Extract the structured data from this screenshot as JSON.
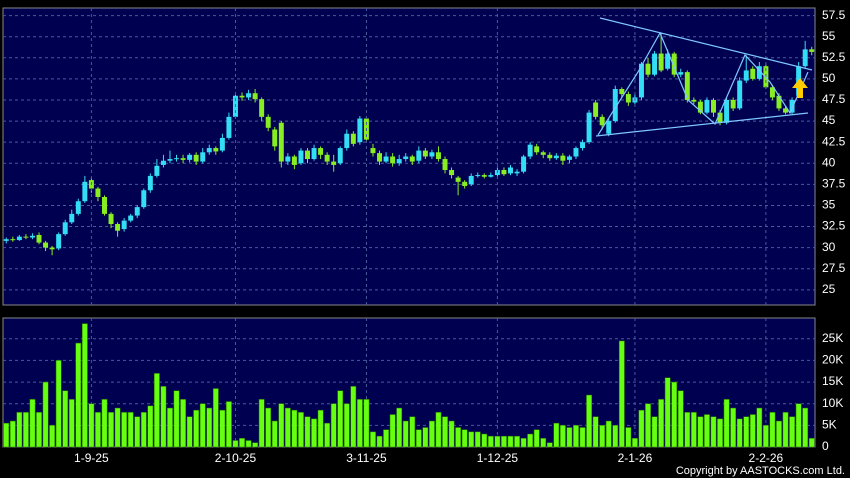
{
  "chart_data": [
    {
      "type": "candlestick",
      "up_color": "#33ddf5",
      "down_color": "#88ee22",
      "ylim": [
        23.2,
        58.4
      ],
      "yticks": [
        25,
        27.5,
        30,
        32.5,
        35,
        37.5,
        40,
        42.5,
        45,
        47.5,
        50,
        52.5,
        55,
        57.5
      ],
      "grid": true,
      "open": [
        30.8,
        31.0,
        30.9,
        31.3,
        31.2,
        31.5,
        30.6,
        30.0,
        29.9,
        31.6,
        33.0,
        34.0,
        35.5,
        38.0,
        37.0,
        36.0,
        34.0,
        32.8,
        32.2,
        33.2,
        33.8,
        34.8,
        36.8,
        38.5,
        39.8,
        40.3,
        40.5,
        40.6,
        40.4,
        41.0,
        40.2,
        41.3,
        41.8,
        41.5,
        43.0,
        45.5,
        48.0,
        47.8,
        48.3,
        47.6,
        45.5,
        44.0,
        44.8,
        40.2,
        40.8,
        40.0,
        41.5,
        40.5,
        41.8,
        41.0,
        40.2,
        40.0,
        41.8,
        43.5,
        42.5,
        45.3,
        41.8,
        41.2,
        40.2,
        40.8,
        40.0,
        40.5,
        40.8,
        40.3,
        41.5,
        40.8,
        41.3,
        40.5,
        39.2,
        38.3,
        37.8,
        37.5,
        38.5,
        38.6,
        38.4,
        38.6,
        39.2,
        38.8,
        38.8,
        39.0,
        40.8,
        42.0,
        41.3,
        41.0,
        40.6,
        40.9,
        40.4,
        40.8,
        41.8,
        42.5,
        47.2,
        45.5,
        43.5,
        45.0,
        48.8,
        48.2,
        47.2,
        47.8,
        51.8,
        50.5,
        53.0,
        51.2,
        53.0,
        50.5,
        50.8,
        47.5,
        47.3,
        46.0,
        47.5,
        46.0,
        44.8,
        47.5,
        46.5,
        49.8,
        51.2,
        50.0,
        51.5,
        49.0,
        48.0,
        46.5,
        46.0,
        48.0,
        51.5,
        53.5
      ],
      "high": [
        31.2,
        31.3,
        31.5,
        31.6,
        31.7,
        31.8,
        30.8,
        30.2,
        31.8,
        33.3,
        34.5,
        35.8,
        38.5,
        38.3,
        37.2,
        36.2,
        34.2,
        33.0,
        33.5,
        34.0,
        35.0,
        37.0,
        38.8,
        40.5,
        41.0,
        41.5,
        41.0,
        41.0,
        41.2,
        41.3,
        41.8,
        42.2,
        42.0,
        43.5,
        46.0,
        48.3,
        48.4,
        48.7,
        48.8,
        47.8,
        45.8,
        44.3,
        45.0,
        41.2,
        41.0,
        41.8,
        41.8,
        42.2,
        42.0,
        41.3,
        41.0,
        42.0,
        44.0,
        43.8,
        45.6,
        45.5,
        42.3,
        41.5,
        41.3,
        41.2,
        41.0,
        41.2,
        41.0,
        42.0,
        41.8,
        41.6,
        42.0,
        40.8,
        39.5,
        38.5,
        38.0,
        38.8,
        38.9,
        38.8,
        38.9,
        39.5,
        39.5,
        39.8,
        39.3,
        41.0,
        42.5,
        42.3,
        41.5,
        41.3,
        41.2,
        41.2,
        41.0,
        42.0,
        42.8,
        46.3,
        47.5,
        45.8,
        45.3,
        49.2,
        49.0,
        48.5,
        48.2,
        52.0,
        52.5,
        53.3,
        55.5,
        53.5,
        53.2,
        51.2,
        51.0,
        47.8,
        47.5,
        47.8,
        47.7,
        46.3,
        47.8,
        47.8,
        50.2,
        52.8,
        51.5,
        52.0,
        51.8,
        49.3,
        48.3,
        46.8,
        47.8,
        52.0,
        54.5,
        53.8
      ],
      "low": [
        30.5,
        30.7,
        30.8,
        31.0,
        31.0,
        30.4,
        29.6,
        29.1,
        29.7,
        31.4,
        32.8,
        33.8,
        35.3,
        36.5,
        35.5,
        33.8,
        32.3,
        31.3,
        31.9,
        33.0,
        33.5,
        34.6,
        36.5,
        38.3,
        39.5,
        40.0,
        40.2,
        40.0,
        40.1,
        39.8,
        40.0,
        41.0,
        41.0,
        41.3,
        42.8,
        45.3,
        47.4,
        47.5,
        47.2,
        45.0,
        43.8,
        41.5,
        39.5,
        39.8,
        39.3,
        39.8,
        40.0,
        40.3,
        40.5,
        39.8,
        39.0,
        39.8,
        41.5,
        42.0,
        42.2,
        42.5,
        40.8,
        39.8,
        40.0,
        39.6,
        39.7,
        40.2,
        39.8,
        40.0,
        40.5,
        40.5,
        40.2,
        38.8,
        38.2,
        36.2,
        37.0,
        37.3,
        38.3,
        38.2,
        38.3,
        38.4,
        38.5,
        38.6,
        38.5,
        38.8,
        40.5,
        41.0,
        40.6,
        40.3,
        40.4,
        39.8,
        40.0,
        40.5,
        41.5,
        42.3,
        45.2,
        44.0,
        43.2,
        44.8,
        47.8,
        46.8,
        47.0,
        47.5,
        50.2,
        50.3,
        50.8,
        51.0,
        50.2,
        50.2,
        47.2,
        47.0,
        45.8,
        45.8,
        45.5,
        44.5,
        44.6,
        46.2,
        46.3,
        49.5,
        49.8,
        49.8,
        48.8,
        47.5,
        46.2,
        45.8,
        45.8,
        47.8,
        51.3,
        52.8
      ],
      "close": [
        31.0,
        30.9,
        31.3,
        31.2,
        31.4,
        30.6,
        30.0,
        29.8,
        31.6,
        33.0,
        34.0,
        35.5,
        37.8,
        37.0,
        36.0,
        34.0,
        32.8,
        32.0,
        33.2,
        33.8,
        34.8,
        36.8,
        38.5,
        39.7,
        40.3,
        40.5,
        40.6,
        40.4,
        41.0,
        40.2,
        41.3,
        41.8,
        41.4,
        43.0,
        45.5,
        48.0,
        47.8,
        48.3,
        47.6,
        45.5,
        44.2,
        42.0,
        40.2,
        40.8,
        39.8,
        41.5,
        40.5,
        41.8,
        41.0,
        40.2,
        39.8,
        41.8,
        43.5,
        42.3,
        45.3,
        42.8,
        41.2,
        40.2,
        40.8,
        40.0,
        40.5,
        40.8,
        40.2,
        41.5,
        40.8,
        41.3,
        40.5,
        39.2,
        38.6,
        37.8,
        37.3,
        38.5,
        38.6,
        38.4,
        38.6,
        39.2,
        38.7,
        39.5,
        39.0,
        40.8,
        42.2,
        41.3,
        41.0,
        40.6,
        40.9,
        40.3,
        40.8,
        41.8,
        42.5,
        46.0,
        45.5,
        44.5,
        45.0,
        48.8,
        48.2,
        47.2,
        47.8,
        51.8,
        50.5,
        53.0,
        51.0,
        53.0,
        50.5,
        50.8,
        47.5,
        47.3,
        46.0,
        47.5,
        46.0,
        44.8,
        47.5,
        46.5,
        49.8,
        51.0,
        50.0,
        51.5,
        49.0,
        47.8,
        46.5,
        46.0,
        47.5,
        51.5,
        53.5,
        53.2
      ]
    },
    {
      "type": "bar",
      "color": "#66ff11",
      "ylim": [
        0,
        29800
      ],
      "grid": true,
      "yticks": [
        0,
        {
          "value": 5000,
          "label": "5K"
        },
        {
          "value": 10000,
          "label": "10K"
        },
        {
          "value": 15000,
          "label": "15K"
        },
        {
          "value": 20000,
          "label": "20K"
        },
        {
          "value": 25000,
          "label": "25K"
        }
      ],
      "categories": [
        null,
        null,
        null,
        null,
        null,
        null,
        null,
        null,
        null,
        null,
        null,
        null,
        null,
        "1-9-25",
        null,
        null,
        null,
        null,
        null,
        null,
        null,
        null,
        null,
        null,
        null,
        null,
        null,
        null,
        null,
        null,
        null,
        null,
        null,
        null,
        null,
        "2-10-25",
        null,
        null,
        null,
        null,
        null,
        null,
        null,
        null,
        null,
        null,
        null,
        null,
        null,
        null,
        null,
        null,
        null,
        null,
        null,
        "3-11-25",
        null,
        null,
        null,
        null,
        null,
        null,
        null,
        null,
        null,
        null,
        null,
        null,
        null,
        null,
        null,
        null,
        null,
        null,
        null,
        "1-12-25",
        null,
        null,
        null,
        null,
        null,
        null,
        null,
        null,
        null,
        null,
        null,
        null,
        null,
        null,
        null,
        null,
        null,
        null,
        null,
        null,
        "2-1-26",
        null,
        null,
        null,
        null,
        null,
        null,
        null,
        null,
        null,
        null,
        null,
        null,
        null,
        null,
        null,
        null,
        null,
        null,
        null,
        "2-2-26",
        null,
        null,
        null,
        null,
        null,
        null,
        null
      ],
      "values": [
        5500,
        6000,
        8000,
        8000,
        11000,
        8000,
        15000,
        5000,
        20000,
        13000,
        11000,
        24000,
        28500,
        10000,
        8000,
        11000,
        8000,
        9000,
        8000,
        8000,
        7000,
        8000,
        9500,
        17000,
        14000,
        9000,
        13000,
        11000,
        7000,
        8500,
        10000,
        9000,
        13500,
        8500,
        10500,
        1500,
        2000,
        1500,
        1000,
        11000,
        9000,
        6000,
        10000,
        9000,
        8500,
        8000,
        7000,
        6500,
        8500,
        5500,
        10000,
        13000,
        10000,
        14000,
        11000,
        11000,
        3500,
        2500,
        4000,
        7500,
        9000,
        6000,
        7000,
        4000,
        4500,
        6000,
        8000,
        7000,
        6000,
        4500,
        4000,
        3500,
        3500,
        3000,
        2500,
        2500,
        2500,
        2500,
        2500,
        2000,
        3000,
        4000,
        2000,
        1000,
        5500,
        5000,
        4500,
        5000,
        4500,
        12000,
        7000,
        5000,
        6000,
        5000,
        24500,
        4500,
        2000,
        8500,
        10000,
        7000,
        11000,
        16000,
        15000,
        13000,
        8000,
        8000,
        7000,
        7500,
        7000,
        6500,
        11000,
        9000,
        6500,
        7000,
        7500,
        9000,
        5000,
        8000,
        6000,
        8000,
        7000,
        10000,
        9000,
        2000
      ]
    }
  ],
  "footer": "Copyright by AASTOCKS.com Ltd."
}
